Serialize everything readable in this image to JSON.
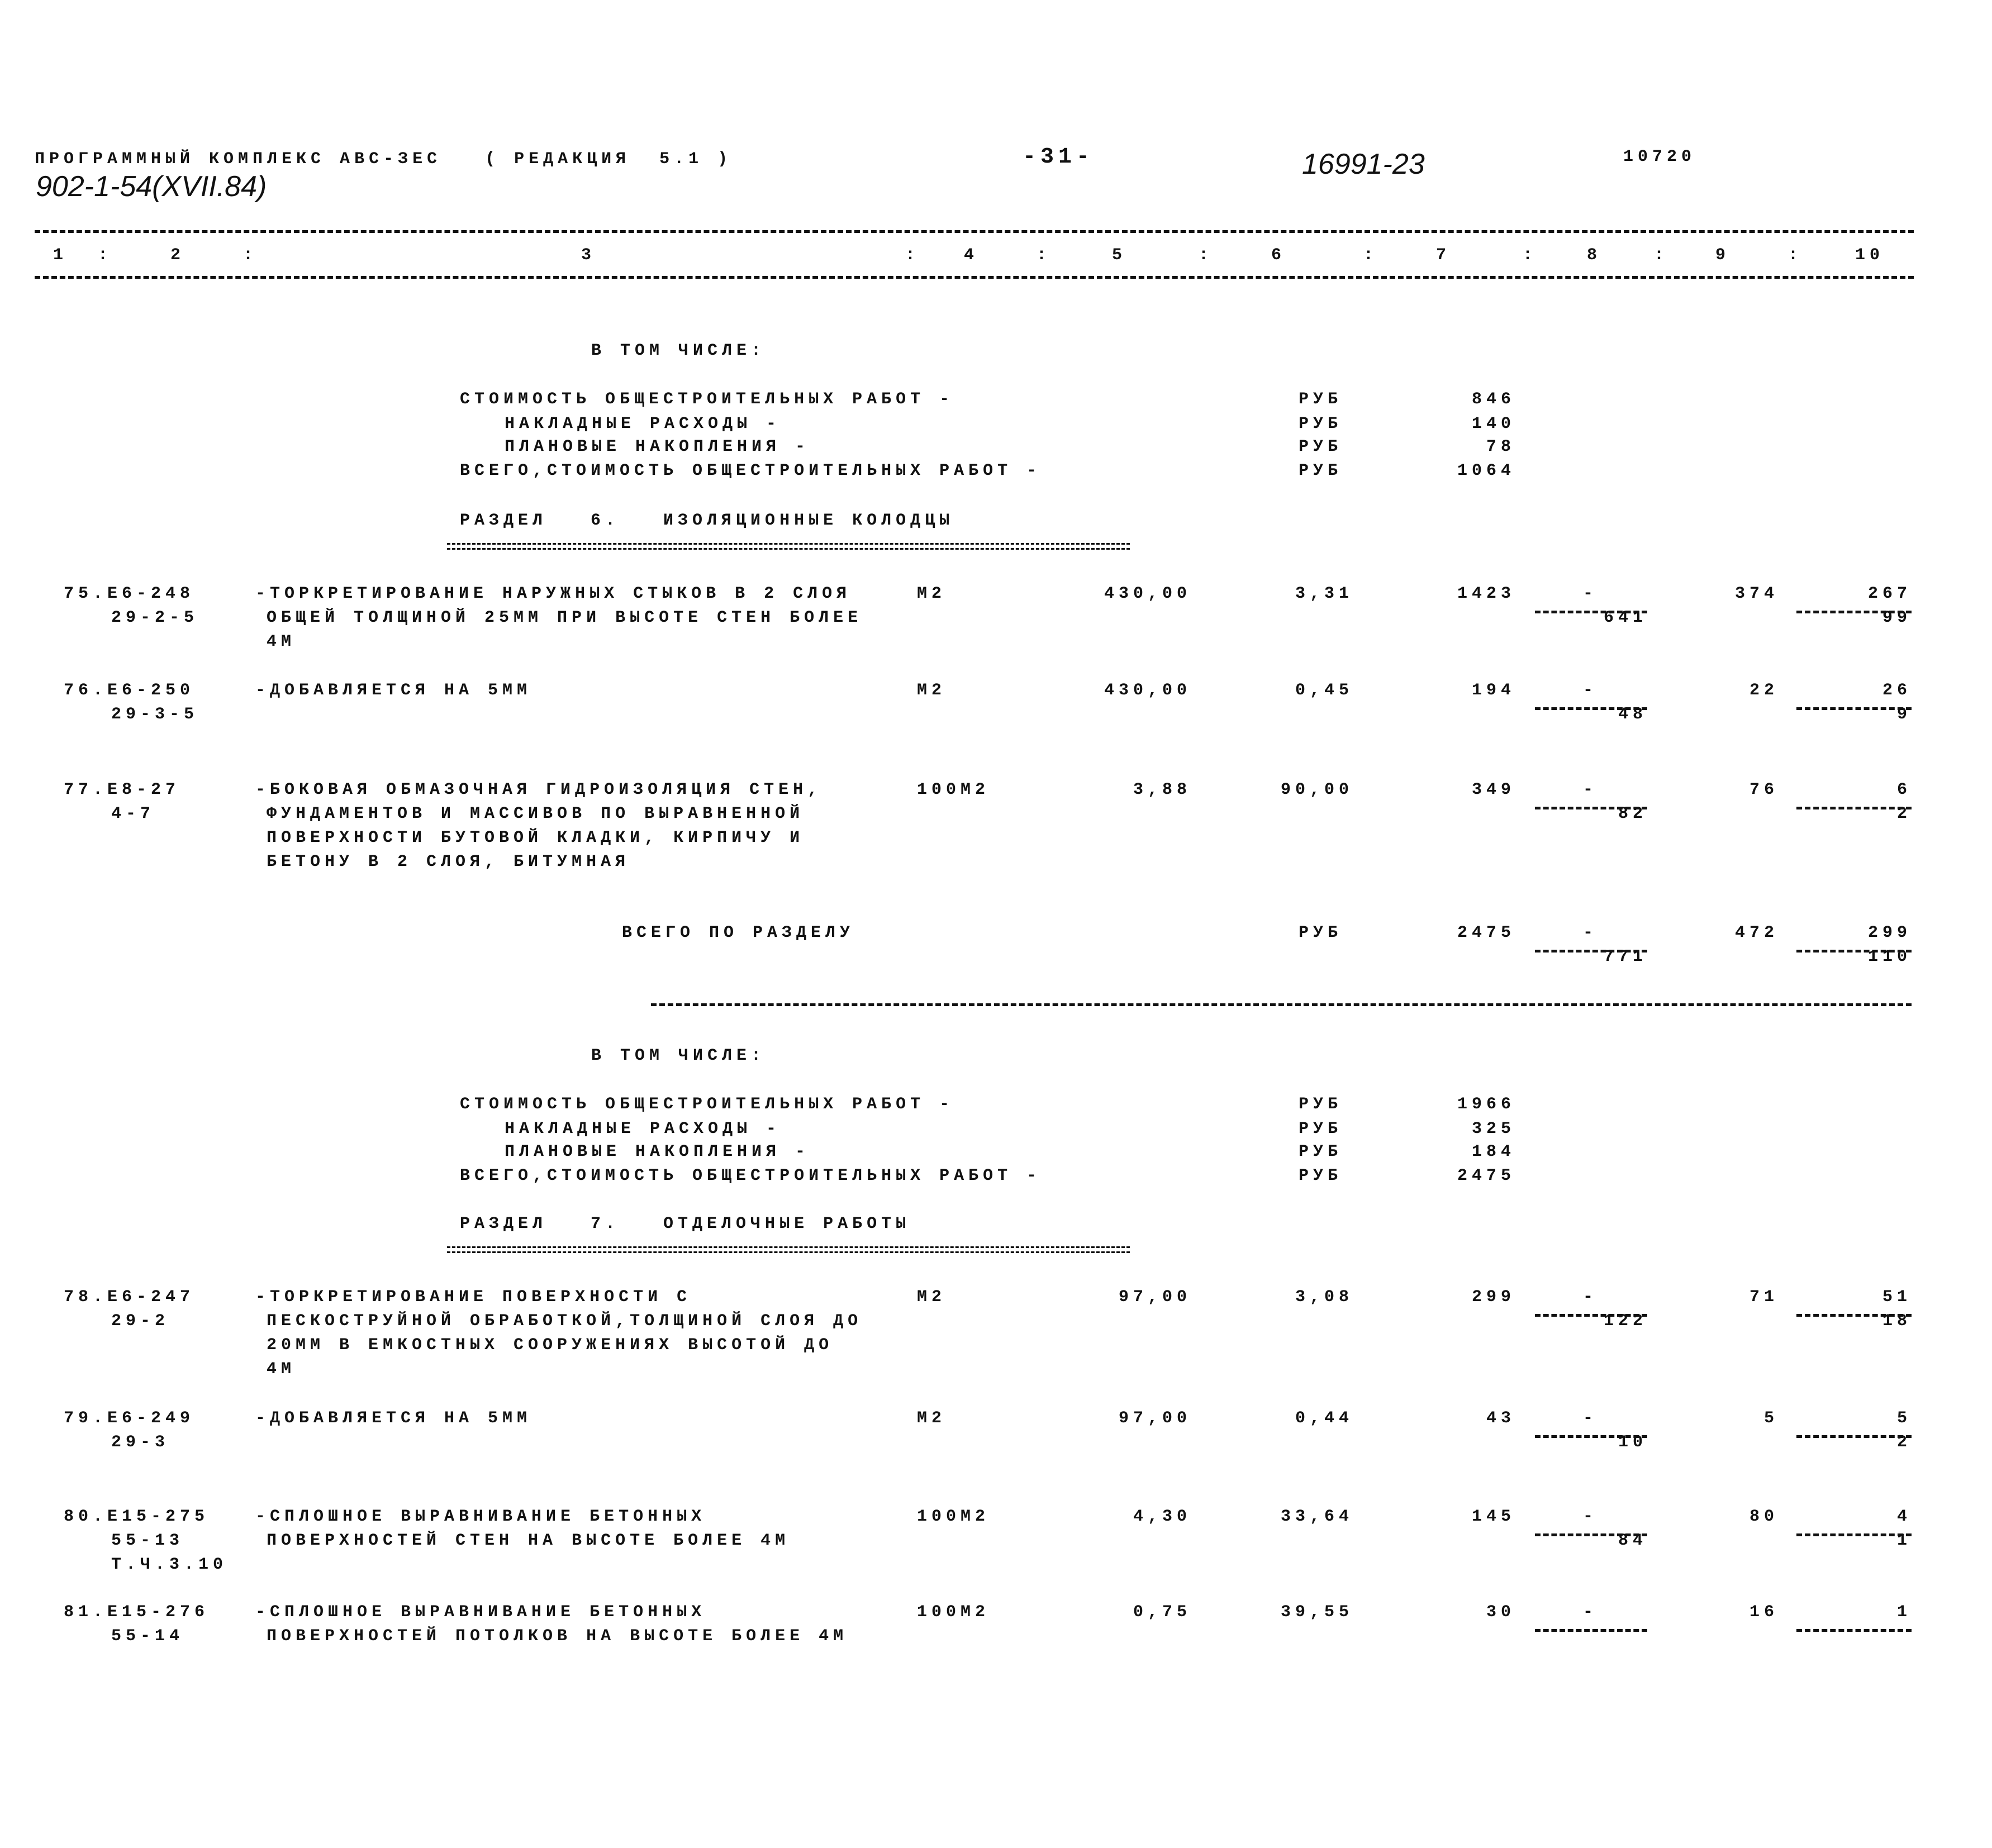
{
  "header": {
    "program": "ПРОГРАММНЫЙ КОМПЛЕКС АВС-ЗЕС   ( РЕДАКЦИЯ  5.1 )",
    "page_number": "-31-",
    "doc_number": "16991-23",
    "code": "10720",
    "project": "902-1-54(XVII.84)"
  },
  "columns": [
    "1",
    "2",
    "3",
    "4",
    "5",
    "6",
    "7",
    "8",
    "9",
    "10"
  ],
  "summary_a": {
    "title": "В ТОМ ЧИСЛЕ:",
    "lines": [
      {
        "label": "СТОИМОСТЬ ОБЩЕСТРОИТЕЛЬНЫХ РАБОТ -",
        "unit": "РУБ",
        "value": "846"
      },
      {
        "label": "НАКЛАДНЫЕ РАСХОДЫ -",
        "unit": "РУБ",
        "value": "140"
      },
      {
        "label": "ПЛАНОВЫЕ НАКОПЛЕНИЯ -",
        "unit": "РУБ",
        "value": "78"
      },
      {
        "label": "ВСЕГО,СТОИМОСТЬ ОБЩЕСТРОИТЕЛЬНЫХ РАБОТ -",
        "unit": "РУБ",
        "value": "1064"
      }
    ]
  },
  "section6": {
    "title": "РАЗДЕЛ   6.   ИЗОЛЯЦИОННЫЕ КОЛОДЦЫ",
    "rows": [
      {
        "code": [
          "75.Е6-248",
          "29-2-5"
        ],
        "desc": [
          "-ТОРКРЕТИРОВАНИЕ НАРУЖНЫХ СТЫКОВ В 2 СЛОЯ",
          "ОБЩЕЙ ТОЛЩИНОЙ 25ММ ПРИ ВЫСОТЕ СТЕН БОЛЕЕ",
          "4М"
        ],
        "unit": "М2",
        "qty": "430,00",
        "price": "3,31",
        "total": "1423",
        "c8": "-",
        "c8b": "641",
        "c9": "374",
        "c10": "267",
        "c10b": "99"
      },
      {
        "code": [
          "76.Е6-250",
          "29-3-5"
        ],
        "desc": [
          "-ДОБАВЛЯЕТСЯ НА 5ММ"
        ],
        "unit": "М2",
        "qty": "430,00",
        "price": "0,45",
        "total": "194",
        "c8": "-",
        "c8b": "48",
        "c9": "22",
        "c10": "26",
        "c10b": "9"
      },
      {
        "code": [
          "77.Е8-27",
          "4-7"
        ],
        "desc": [
          "-БОКОВАЯ ОБМАЗОЧНАЯ ГИДРОИЗОЛЯЦИЯ СТЕН,",
          "ФУНДАМЕНТОВ И МАССИВОВ ПО ВЫРАВНЕННОЙ",
          "ПОВЕРХНОСТИ БУТОВОЙ КЛАДКИ, КИРПИЧУ И",
          "БЕТОНУ В 2 СЛОЯ, БИТУМНАЯ"
        ],
        "unit": "100М2",
        "qty": "3,88",
        "price": "90,00",
        "total": "349",
        "c8": "-",
        "c8b": "82",
        "c9": "76",
        "c10": "6",
        "c10b": "2"
      }
    ],
    "total": {
      "label": "ВСЕГО ПО РАЗДЕЛУ",
      "unit": "РУБ",
      "total": "2475",
      "c8": "-",
      "c8b": "771",
      "c9": "472",
      "c10": "299",
      "c10b": "110"
    }
  },
  "summary_b": {
    "title": "В ТОМ ЧИСЛЕ:",
    "lines": [
      {
        "label": "СТОИМОСТЬ ОБЩЕСТРОИТЕЛЬНЫХ РАБОТ -",
        "unit": "РУБ",
        "value": "1966"
      },
      {
        "label": "НАКЛАДНЫЕ РАСХОДЫ -",
        "unit": "РУБ",
        "value": "325"
      },
      {
        "label": "ПЛАНОВЫЕ НАКОПЛЕНИЯ -",
        "unit": "РУБ",
        "value": "184"
      },
      {
        "label": "ВСЕГО,СТОИМОСТЬ ОБЩЕСТРОИТЕЛЬНЫХ РАБОТ -",
        "unit": "РУБ",
        "value": "2475"
      }
    ]
  },
  "section7": {
    "title": "РАЗДЕЛ   7.   ОТДЕЛОЧНЫЕ РАБОТЫ",
    "rows": [
      {
        "code": [
          "78.Е6-247",
          "29-2"
        ],
        "desc": [
          "-ТОРКРЕТИРОВАНИЕ ПОВЕРХНОСТИ С",
          "ПЕСКОСТРУЙНОЙ ОБРАБОТКОЙ,ТОЛЩИНОЙ СЛОЯ ДО",
          "20ММ В ЕМКОСТНЫХ СООРУЖЕНИЯХ ВЫСОТОЙ ДО",
          "4М"
        ],
        "unit": "М2",
        "qty": "97,00",
        "price": "3,08",
        "total": "299",
        "c8": "-",
        "c8b": "122",
        "c9": "71",
        "c10": "51",
        "c10b": "18"
      },
      {
        "code": [
          "79.Е6-249",
          "29-3"
        ],
        "desc": [
          "-ДОБАВЛЯЕТСЯ НА 5ММ"
        ],
        "unit": "М2",
        "qty": "97,00",
        "price": "0,44",
        "total": "43",
        "c8": "-",
        "c8b": "10",
        "c9": "5",
        "c10": "5",
        "c10b": "2"
      },
      {
        "code": [
          "80.Е15-275",
          "55-13",
          "Т.Ч.3.10"
        ],
        "desc": [
          "-СПЛОШНОЕ ВЫРАВНИВАНИЕ БЕТОННЫХ",
          "ПОВЕРХНОСТЕЙ СТЕН НА ВЫСОТЕ БОЛЕЕ 4М"
        ],
        "unit": "100М2",
        "qty": "4,30",
        "price": "33,64",
        "total": "145",
        "c8": "-",
        "c8b": "84",
        "c9": "80",
        "c10": "4",
        "c10b": "1"
      },
      {
        "code": [
          "81.Е15-276",
          "55-14"
        ],
        "desc": [
          "-СПЛОШНОЕ ВЫРАВНИВАНИЕ БЕТОННЫХ",
          "ПОВЕРХНОСТЕЙ ПОТОЛКОВ НА ВЫСОТЕ БОЛЕЕ 4М"
        ],
        "unit": "100М2",
        "qty": "0,75",
        "price": "39,55",
        "total": "30",
        "c8": "-",
        "c9": "16",
        "c10": "1"
      }
    ]
  }
}
